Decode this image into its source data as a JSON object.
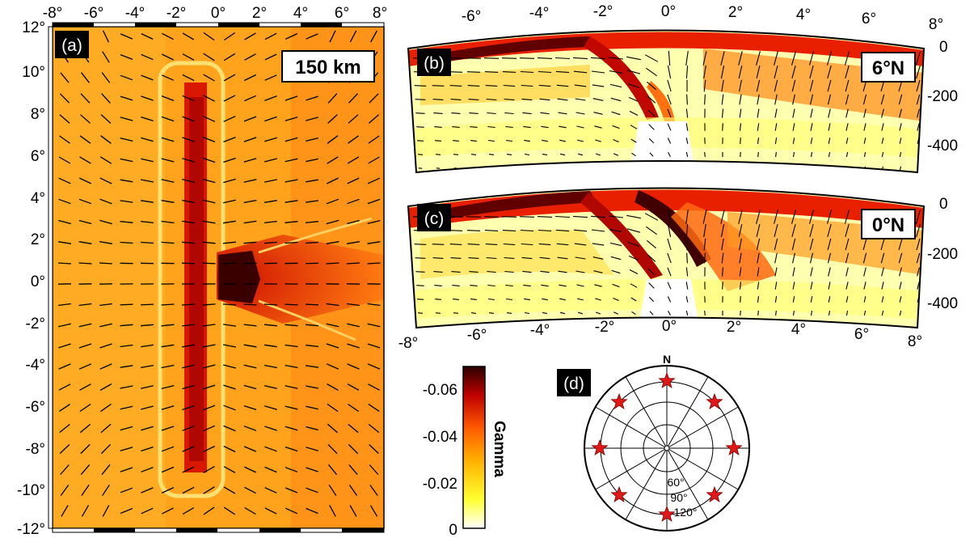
{
  "panels": {
    "a": {
      "label": "(a)",
      "depth_label": "150 km",
      "x_ticks": [
        "-8°",
        "-6°",
        "-4°",
        "-2°",
        "0°",
        "2°",
        "4°",
        "6°",
        "8°"
      ],
      "y_ticks": [
        "12°",
        "10°",
        "8°",
        "6°",
        "4°",
        "2°",
        "0°",
        "-2°",
        "-4°",
        "-6°",
        "-8°",
        "-10°",
        "-12°"
      ]
    },
    "b": {
      "label": "(b)",
      "latitude_label": "6°N",
      "x_ticks": [
        "-6°",
        "-4°",
        "-2°",
        "0°",
        "2°",
        "4°",
        "6°",
        "8°"
      ],
      "depth_ticks": [
        "0",
        "-200",
        "-400"
      ]
    },
    "c": {
      "label": "(c)",
      "latitude_label": "0°N",
      "x_ticks": [
        "-8°",
        "-6°",
        "-4°",
        "-2°",
        "0°",
        "2°",
        "4°",
        "6°",
        "8°"
      ],
      "depth_ticks": [
        "0",
        "-200",
        "-400"
      ]
    },
    "d": {
      "label": "(d)",
      "north_label": "N",
      "ring_labels": [
        "60°",
        "90°",
        "120°"
      ],
      "star_color": "#e01818"
    }
  },
  "colorbar": {
    "title": "Gamma",
    "ticks": [
      "-0.06",
      "-0.04",
      "-0.02",
      "0"
    ],
    "range": [
      -0.07,
      0
    ],
    "colors": [
      "#ffffff",
      "#ffff20",
      "#ffb000",
      "#ff6000",
      "#c00000",
      "#300000"
    ]
  }
}
